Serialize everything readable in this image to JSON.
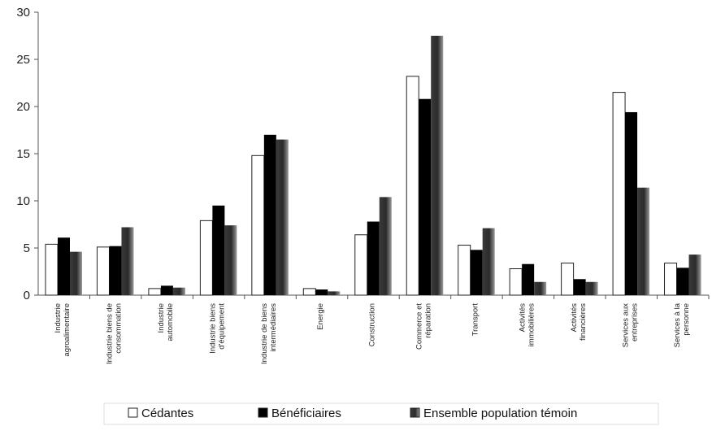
{
  "chart_data": {
    "type": "bar",
    "title": "",
    "xlabel": "",
    "ylabel": "",
    "ylim": [
      0,
      30
    ],
    "yticks": [
      0,
      5,
      10,
      15,
      20,
      25,
      30
    ],
    "grid": false,
    "legend_position": "bottom",
    "categories": [
      [
        "Industrie",
        "agroalimentaire"
      ],
      [
        "Industrie biens de",
        "consommation"
      ],
      [
        "Industrie",
        "automobile"
      ],
      [
        "Industrie biens",
        "d'équipement"
      ],
      [
        "Industrie de biens",
        "intermédiaires"
      ],
      [
        "Energie"
      ],
      [
        "Construction"
      ],
      [
        "Commerce et",
        "réparation"
      ],
      [
        "Transport"
      ],
      [
        "Activités",
        "immobilières"
      ],
      [
        "Activités",
        "financières"
      ],
      [
        "Services aux",
        "entreprises"
      ],
      [
        "Services à la",
        "personne"
      ]
    ],
    "series": [
      {
        "name": "Cédantes",
        "color": "#ffffff",
        "values": [
          5.4,
          5.1,
          0.7,
          7.9,
          14.8,
          0.7,
          6.4,
          23.2,
          5.3,
          2.8,
          3.4,
          21.5,
          3.4
        ]
      },
      {
        "name": "Bénéficiaires",
        "color": "#000000",
        "values": [
          6.1,
          5.2,
          1.0,
          9.5,
          17.0,
          0.6,
          7.8,
          20.8,
          4.8,
          3.3,
          1.7,
          19.4,
          2.9
        ]
      },
      {
        "name": "Ensemble population témoin",
        "color": "#333333",
        "values": [
          4.6,
          7.2,
          0.8,
          7.4,
          16.5,
          0.4,
          10.4,
          27.5,
          7.1,
          1.4,
          1.4,
          11.4,
          4.3
        ]
      }
    ]
  }
}
